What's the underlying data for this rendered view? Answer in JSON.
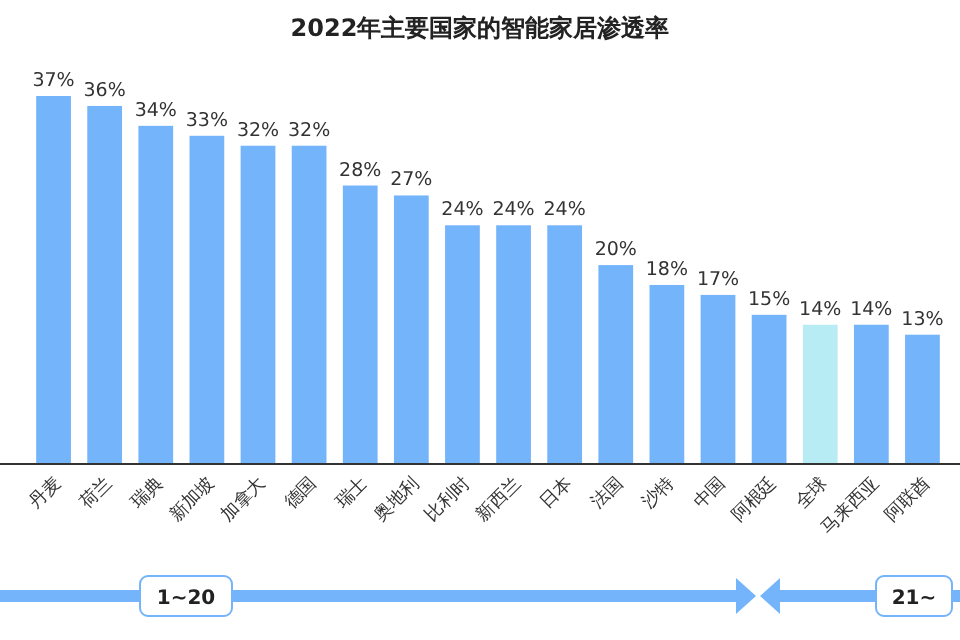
{
  "chart_data": {
    "type": "bar",
    "title": "2022年主要国家的智能家居渗透率",
    "categories": [
      "丹麦",
      "荷兰",
      "瑞典",
      "新加坡",
      "加拿大",
      "德国",
      "瑞士",
      "奥地利",
      "比利时",
      "新西兰",
      "日本",
      "法国",
      "沙特",
      "中国",
      "阿根廷",
      "全球",
      "马来西亚",
      "阿联酋"
    ],
    "values": [
      37,
      36,
      34,
      33,
      32,
      32,
      28,
      27,
      24,
      24,
      24,
      20,
      18,
      17,
      15,
      14,
      14,
      13
    ],
    "colors": [
      "#74b4fb",
      "#74b4fb",
      "#74b4fb",
      "#74b4fb",
      "#74b4fb",
      "#74b4fb",
      "#74b4fb",
      "#74b4fb",
      "#74b4fb",
      "#74b4fb",
      "#74b4fb",
      "#74b4fb",
      "#74b4fb",
      "#74b4fb",
      "#74b4fb",
      "#b8ecf5",
      "#74b4fb",
      "#74b4fb"
    ],
    "value_labels": [
      "37%",
      "36%",
      "34%",
      "33%",
      "32%",
      "32%",
      "28%",
      "27%",
      "24%",
      "24%",
      "24%",
      "20%",
      "18%",
      "17%",
      "15%",
      "14%",
      "14%",
      "13%"
    ],
    "annotations": [
      "1~20",
      "21~"
    ]
  }
}
